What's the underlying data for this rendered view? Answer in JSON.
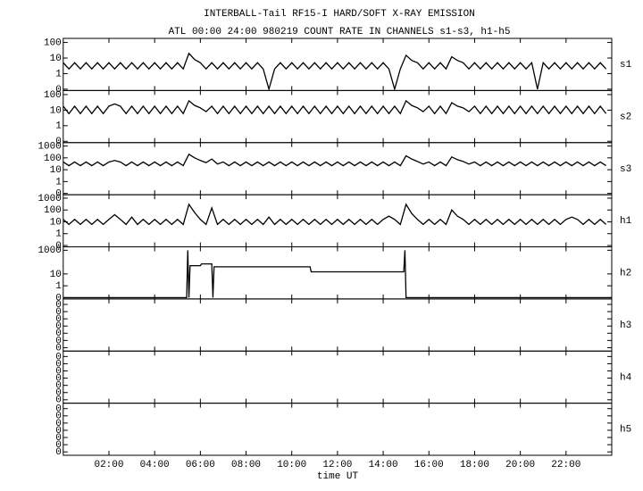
{
  "chart_data": {
    "type": "line",
    "title": "INTERBALL-Tail RF15-I HARD/SOFT X-RAY EMISSION",
    "subtitle": "ATL 00:00 24:00 980219  COUNT RATE IN CHANNELS s1-s3, h1-h5",
    "x_label": "time UT",
    "color": "#000000",
    "xlim": [
      0,
      24
    ],
    "xticks": [
      {
        "value": 2,
        "label": "02:00"
      },
      {
        "value": 4,
        "label": "04:00"
      },
      {
        "value": 6,
        "label": "06:00"
      },
      {
        "value": 8,
        "label": "08:00"
      },
      {
        "value": 10,
        "label": "10:00"
      },
      {
        "value": 12,
        "label": "12:00"
      },
      {
        "value": 14,
        "label": "14:00"
      },
      {
        "value": 16,
        "label": "16:00"
      },
      {
        "value": 18,
        "label": "18:00"
      },
      {
        "value": 20,
        "label": "20:00"
      },
      {
        "value": 22,
        "label": "22:00"
      }
    ],
    "x": [
      0,
      0.25,
      0.5,
      0.75,
      1,
      1.25,
      1.5,
      1.75,
      2,
      2.25,
      2.5,
      2.75,
      3,
      3.25,
      3.5,
      3.75,
      4,
      4.25,
      4.5,
      4.75,
      5,
      5.25,
      5.5,
      5.75,
      6,
      6.25,
      6.5,
      6.75,
      7,
      7.25,
      7.5,
      7.75,
      8,
      8.25,
      8.5,
      8.75,
      9,
      9.25,
      9.5,
      9.75,
      10,
      10.25,
      10.5,
      10.75,
      11,
      11.25,
      11.5,
      11.75,
      12,
      12.25,
      12.5,
      12.75,
      13,
      13.25,
      13.5,
      13.75,
      14,
      14.25,
      14.5,
      14.75,
      15,
      15.25,
      15.5,
      15.75,
      16,
      16.25,
      16.5,
      16.75,
      17,
      17.25,
      17.5,
      17.75,
      18,
      18.25,
      18.5,
      18.75,
      19,
      19.25,
      19.5,
      19.75,
      20,
      20.25,
      20.5,
      20.75,
      21,
      21.25,
      21.5,
      21.75,
      22,
      22.25,
      22.5,
      22.75,
      23,
      23.25,
      23.5,
      23.75
    ],
    "panels": [
      {
        "name": "s1",
        "log": true,
        "ylim": [
          0.1,
          150
        ],
        "yticks": [
          {
            "value": 0.1,
            "label": "0"
          },
          1,
          10,
          100
        ],
        "values": [
          5,
          2,
          5,
          2,
          5,
          2,
          5,
          2,
          5,
          2,
          5,
          2,
          5,
          2,
          5,
          2,
          5,
          2,
          5,
          2,
          5,
          2,
          20,
          8,
          5,
          2,
          5,
          2,
          5,
          2,
          5,
          2,
          5,
          2,
          5,
          2,
          0.1,
          2,
          5,
          2,
          5,
          2,
          5,
          2,
          5,
          2,
          5,
          2,
          5,
          2,
          5,
          2,
          5,
          2,
          5,
          2,
          5,
          2,
          0.1,
          2,
          15,
          7,
          5,
          2,
          5,
          2,
          5,
          2,
          12,
          7,
          5,
          2,
          5,
          2,
          5,
          2,
          5,
          2,
          5,
          2,
          5,
          2,
          5,
          0.1,
          5,
          2,
          5,
          2,
          5,
          2,
          5,
          2,
          5,
          2,
          5,
          2
        ]
      },
      {
        "name": "s2",
        "log": true,
        "ylim": [
          0.1,
          150
        ],
        "yticks": [
          {
            "value": 0.1,
            "label": "0"
          },
          1,
          10,
          100
        ],
        "values": [
          18,
          6,
          18,
          6,
          18,
          6,
          18,
          6,
          18,
          25,
          18,
          6,
          18,
          6,
          18,
          6,
          18,
          6,
          18,
          6,
          18,
          6,
          40,
          20,
          14,
          8,
          18,
          6,
          18,
          6,
          18,
          6,
          18,
          6,
          18,
          6,
          18,
          6,
          18,
          6,
          18,
          6,
          18,
          6,
          18,
          6,
          18,
          6,
          18,
          6,
          18,
          6,
          18,
          6,
          18,
          6,
          18,
          6,
          18,
          6,
          40,
          20,
          14,
          8,
          18,
          6,
          18,
          6,
          30,
          18,
          14,
          8,
          18,
          6,
          18,
          6,
          18,
          6,
          18,
          6,
          18,
          6,
          18,
          6,
          18,
          6,
          18,
          6,
          18,
          6,
          18,
          6,
          18,
          6,
          18,
          6
        ]
      },
      {
        "name": "s3",
        "log": true,
        "ylim": [
          0.1,
          1500
        ],
        "yticks": [
          {
            "value": 0.1,
            "label": "0"
          },
          1,
          10,
          100,
          1000
        ],
        "values": [
          45,
          22,
          45,
          22,
          45,
          22,
          45,
          22,
          45,
          60,
          45,
          22,
          45,
          22,
          45,
          22,
          45,
          22,
          45,
          22,
          45,
          22,
          200,
          100,
          60,
          40,
          80,
          30,
          45,
          22,
          45,
          22,
          45,
          22,
          45,
          22,
          45,
          22,
          45,
          22,
          45,
          22,
          45,
          22,
          45,
          22,
          45,
          22,
          45,
          22,
          45,
          22,
          45,
          22,
          45,
          22,
          45,
          22,
          45,
          22,
          150,
          80,
          50,
          30,
          45,
          22,
          45,
          22,
          120,
          70,
          50,
          30,
          45,
          22,
          45,
          22,
          45,
          22,
          45,
          22,
          45,
          22,
          45,
          22,
          45,
          22,
          45,
          22,
          45,
          22,
          45,
          22,
          45,
          22,
          45,
          22
        ]
      },
      {
        "name": "h1",
        "log": true,
        "ylim": [
          0.1,
          1500
        ],
        "yticks": [
          {
            "value": 0.1,
            "label": "0"
          },
          1,
          10,
          100,
          1000
        ],
        "values": [
          16,
          6,
          16,
          6,
          16,
          6,
          16,
          6,
          16,
          40,
          16,
          6,
          25,
          6,
          16,
          6,
          16,
          6,
          16,
          6,
          16,
          6,
          300,
          60,
          16,
          6,
          150,
          6,
          16,
          6,
          16,
          6,
          16,
          6,
          16,
          6,
          25,
          6,
          16,
          6,
          16,
          6,
          16,
          6,
          16,
          6,
          16,
          6,
          16,
          6,
          16,
          6,
          16,
          6,
          16,
          6,
          16,
          30,
          16,
          6,
          300,
          50,
          16,
          6,
          16,
          6,
          16,
          6,
          100,
          30,
          16,
          6,
          16,
          6,
          16,
          6,
          16,
          6,
          16,
          6,
          16,
          6,
          16,
          6,
          16,
          6,
          16,
          6,
          16,
          25,
          16,
          6,
          16,
          6,
          16,
          6
        ]
      },
      {
        "name": "h2",
        "log": true,
        "ylim": [
          0.1,
          1500
        ],
        "yticks": [
          {
            "value": 0.1,
            "label": "0"
          },
          1,
          10,
          1000
        ],
        "x": [
          0,
          5.4,
          5.45,
          5.5,
          5.55,
          6.0,
          6.05,
          6.5,
          6.55,
          6.6,
          10.8,
          10.85,
          14.9,
          14.95,
          15.0,
          24
        ],
        "values": [
          0.1,
          0.1,
          1000,
          0.1,
          50,
          50,
          70,
          70,
          0.1,
          40,
          40,
          15,
          15,
          1000,
          0.1,
          0.1
        ]
      },
      {
        "name": "h3",
        "log": false,
        "ylim": [
          -0.02,
          0.46
        ],
        "yticks": [
          {
            "value": 0,
            "label": "0"
          },
          {
            "value": 0.07,
            "label": "0"
          },
          {
            "value": 0.14,
            "label": "0"
          },
          {
            "value": 0.21,
            "label": "0"
          },
          {
            "value": 0.28,
            "label": "0"
          },
          {
            "value": 0.35,
            "label": "0"
          },
          {
            "value": 0.42,
            "label": "0"
          }
        ]
      },
      {
        "name": "h4",
        "log": false,
        "ylim": [
          -0.02,
          0.46
        ],
        "yticks": [
          {
            "value": 0,
            "label": "0"
          },
          {
            "value": 0.07,
            "label": "0"
          },
          {
            "value": 0.14,
            "label": "0"
          },
          {
            "value": 0.21,
            "label": "0"
          },
          {
            "value": 0.28,
            "label": "0"
          },
          {
            "value": 0.35,
            "label": "0"
          },
          {
            "value": 0.42,
            "label": "0"
          }
        ]
      },
      {
        "name": "h5",
        "log": false,
        "ylim": [
          -0.02,
          0.46
        ],
        "yticks": [
          {
            "value": 0,
            "label": "0"
          },
          {
            "value": 0.07,
            "label": "0"
          },
          {
            "value": 0.14,
            "label": "0"
          },
          {
            "value": 0.21,
            "label": "0"
          },
          {
            "value": 0.28,
            "label": "0"
          },
          {
            "value": 0.35,
            "label": "0"
          },
          {
            "value": 0.42,
            "label": "0"
          }
        ]
      }
    ]
  }
}
